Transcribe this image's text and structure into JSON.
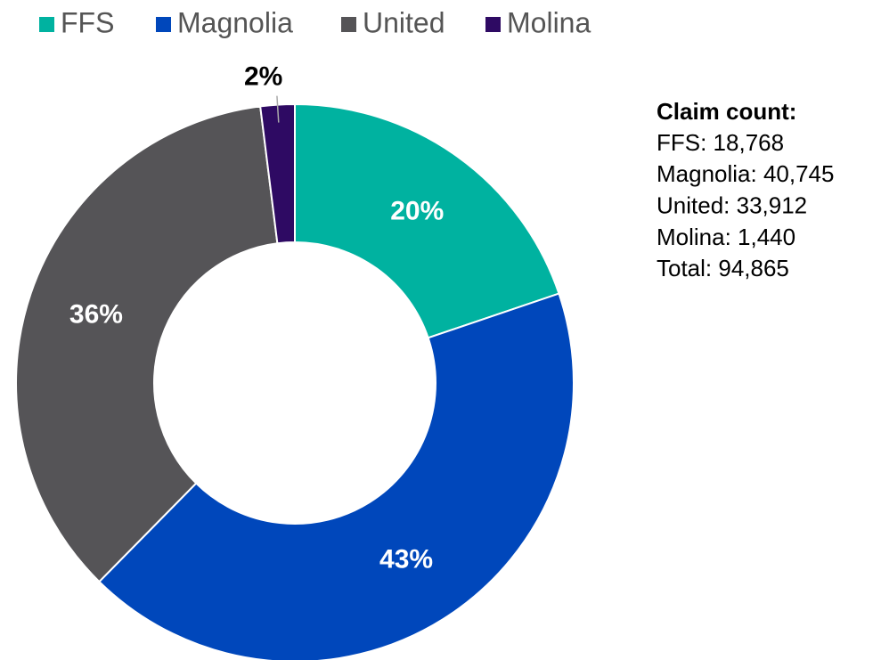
{
  "chart_data": {
    "type": "donut",
    "categories": [
      "FFS",
      "Magnolia",
      "United",
      "Molina"
    ],
    "values": [
      20,
      43,
      36,
      2
    ],
    "value_labels": [
      "20%",
      "43%",
      "36%",
      "2%"
    ],
    "colors": [
      "#00b2a0",
      "#0047bb",
      "#555457",
      "#2e0a63"
    ],
    "legend": "top",
    "annotation": {
      "title": "Claim count:",
      "lines": [
        "FFS: 18,768",
        "Magnolia: 40,745",
        "United: 33,912",
        "Molina: 1,440",
        "Total: 94,865"
      ]
    }
  }
}
